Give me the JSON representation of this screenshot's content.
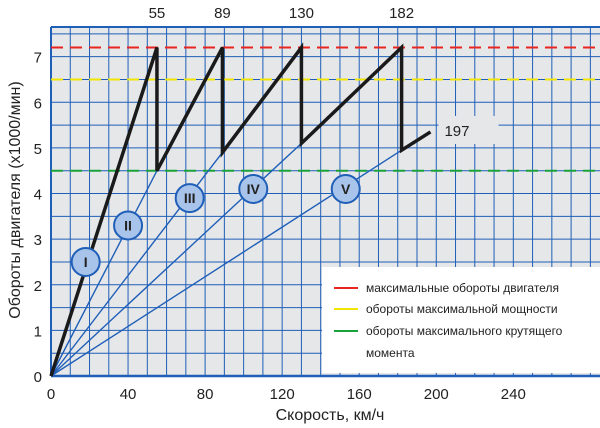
{
  "chart_data": {
    "type": "line",
    "title": "",
    "xlabel": "Скорость, км/ч",
    "ylabel": "Обороты двигателя (x1000/мин)",
    "xlim": [
      0,
      285
    ],
    "ylim": [
      0,
      7.65
    ],
    "xticks": [
      0,
      40,
      80,
      120,
      160,
      200,
      240
    ],
    "yticks": [
      0,
      1,
      2,
      3,
      4,
      5,
      6,
      7
    ],
    "grid": true,
    "x_grid_step": 10,
    "y_grid_step": 0.5,
    "colors": {
      "background": "#e6e7e9",
      "grid": "#1f5fb8",
      "sawtooth": "#1a1a1a",
      "gear_line": "#1f5fb8",
      "gear_badge_fill": "#a9c4ea"
    },
    "reference_lines": [
      {
        "name": "максимальные обороты двигателя",
        "y": 7.2,
        "color": "#e8251f"
      },
      {
        "name": "обороты максимальной мощности",
        "y": 6.5,
        "color": "#f2e600"
      },
      {
        "name": "обороты максимального крутящего момента",
        "y": 4.5,
        "color": "#1aa23a"
      }
    ],
    "sawtooth": {
      "x": [
        0,
        55,
        55,
        89,
        89,
        130,
        130,
        182,
        182,
        197
      ],
      "y": [
        0,
        7.2,
        4.5,
        7.2,
        4.9,
        7.2,
        5.1,
        7.2,
        4.95,
        5.35
      ]
    },
    "gears": [
      {
        "label": "I",
        "end": [
          55,
          7.2
        ],
        "badge": [
          18,
          2.5
        ]
      },
      {
        "label": "II",
        "end": [
          55,
          4.5
        ],
        "badge": [
          40,
          3.3
        ]
      },
      {
        "label": "III",
        "end": [
          89,
          4.9
        ],
        "badge": [
          72,
          3.9
        ]
      },
      {
        "label": "IV",
        "end": [
          130,
          5.1
        ],
        "badge": [
          105,
          4.1
        ]
      },
      {
        "label": "V",
        "end": [
          182,
          4.95
        ],
        "badge": [
          153,
          4.1
        ]
      }
    ],
    "shift_speed_labels": [
      "55",
      "89",
      "130",
      "182"
    ],
    "shift_speeds": [
      55,
      89,
      130,
      182
    ],
    "top_speed_label": "197",
    "top_speed": 197,
    "legend": {
      "placement": "bottom-right",
      "entries": [
        "максимальные обороты двигателя",
        "обороты максимальной мощности",
        "обороты максимального крутящего",
        "момента"
      ]
    }
  }
}
